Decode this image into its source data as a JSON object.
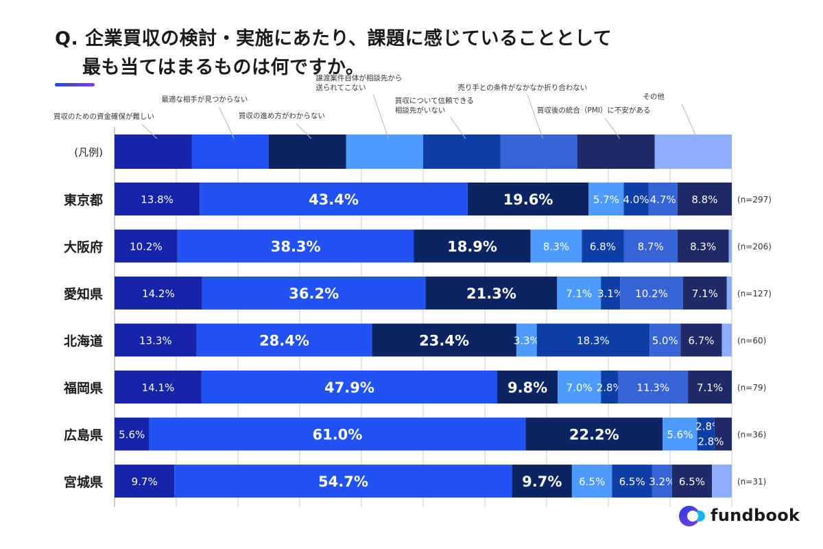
{
  "title": {
    "line1": "Q. 企業買収の検討・実施にあたり、課題に感じていることとして",
    "line2": "最も当てはまるものは何ですか。"
  },
  "logo": {
    "text": "fundbook",
    "icon": "fundbook-logo-icon"
  },
  "chart_data": {
    "type": "bar",
    "orientation": "horizontal",
    "stacked": true,
    "percent": true,
    "xlim": [
      0,
      100
    ],
    "grid": true,
    "legend_row_label": "(凡例)",
    "categories": [
      "東京都",
      "大阪府",
      "愛知県",
      "北海道",
      "福岡県",
      "広島県",
      "宮城県"
    ],
    "sample_sizes": [
      "(n=297)",
      "(n=206)",
      "(n=127)",
      "(n=60)",
      "(n=79)",
      "(n=36)",
      "(n=31)"
    ],
    "series": [
      {
        "name": "買収のための資金確保が難しい",
        "color": "#1524a8",
        "values": [
          13.8,
          10.2,
          14.2,
          13.3,
          14.1,
          5.6,
          9.7
        ],
        "labels": [
          "13.8%",
          "10.2%",
          "14.2%",
          "13.3%",
          "14.1%",
          "5.6%",
          "9.7%"
        ]
      },
      {
        "name": "最適な相手が見つからない",
        "color": "#2152f3",
        "values": [
          43.4,
          38.3,
          36.2,
          28.4,
          47.9,
          61.0,
          54.7
        ],
        "labels": [
          "43.4%",
          "38.3%",
          "36.2%",
          "28.4%",
          "47.9%",
          "61.0%",
          "54.7%"
        ]
      },
      {
        "name": "買収の進め方がわからない",
        "color": "#0c2463",
        "values": [
          19.6,
          18.9,
          21.3,
          23.4,
          9.8,
          22.2,
          9.7
        ],
        "labels": [
          "19.6%",
          "18.9%",
          "21.3%",
          "23.4%",
          "9.8%",
          "22.2%",
          "9.7%"
        ]
      },
      {
        "name": "譲渡案件自体が相談先から送られてこない",
        "color": "#4d9bfc",
        "values": [
          5.7,
          8.3,
          7.1,
          3.3,
          7.0,
          5.6,
          6.5
        ],
        "labels": [
          "5.7%",
          "8.3%",
          "7.1%",
          "3.3%",
          "7.0%",
          "5.6%",
          "6.5%"
        ]
      },
      {
        "name": "買収について信頼できる相談先がいない",
        "color": "#0d3fa6",
        "values": [
          4.0,
          6.8,
          3.1,
          18.3,
          2.8,
          2.8,
          6.5
        ],
        "labels": [
          "4.0%",
          "6.8%",
          "3.1%",
          "18.3%",
          "2.8%",
          "2.8%",
          "6.5%"
        ]
      },
      {
        "name": "売り手との条件がなかなか折り合わない",
        "color": "#3664d6",
        "values": [
          4.7,
          8.7,
          10.2,
          5.0,
          11.3,
          0.0,
          3.2
        ],
        "labels": [
          "4.7%",
          "8.7%",
          "10.2%",
          "5.0%",
          "11.3%",
          "",
          "3.2%"
        ]
      },
      {
        "name": "買収後の統合（PMI）に不安がある",
        "color": "#1f2a66",
        "values": [
          8.8,
          8.3,
          7.1,
          6.7,
          7.1,
          2.8,
          6.5
        ],
        "labels": [
          "8.8%",
          "8.3%",
          "7.1%",
          "6.7%",
          "7.1%",
          "2.8%",
          "6.5%"
        ]
      },
      {
        "name": "その他",
        "color": "#8eaefc",
        "values": [
          0.0,
          0.5,
          0.8,
          1.6,
          0.0,
          0.0,
          3.2
        ],
        "labels": [
          "",
          "",
          "",
          "",
          "",
          "",
          ""
        ]
      }
    ]
  }
}
